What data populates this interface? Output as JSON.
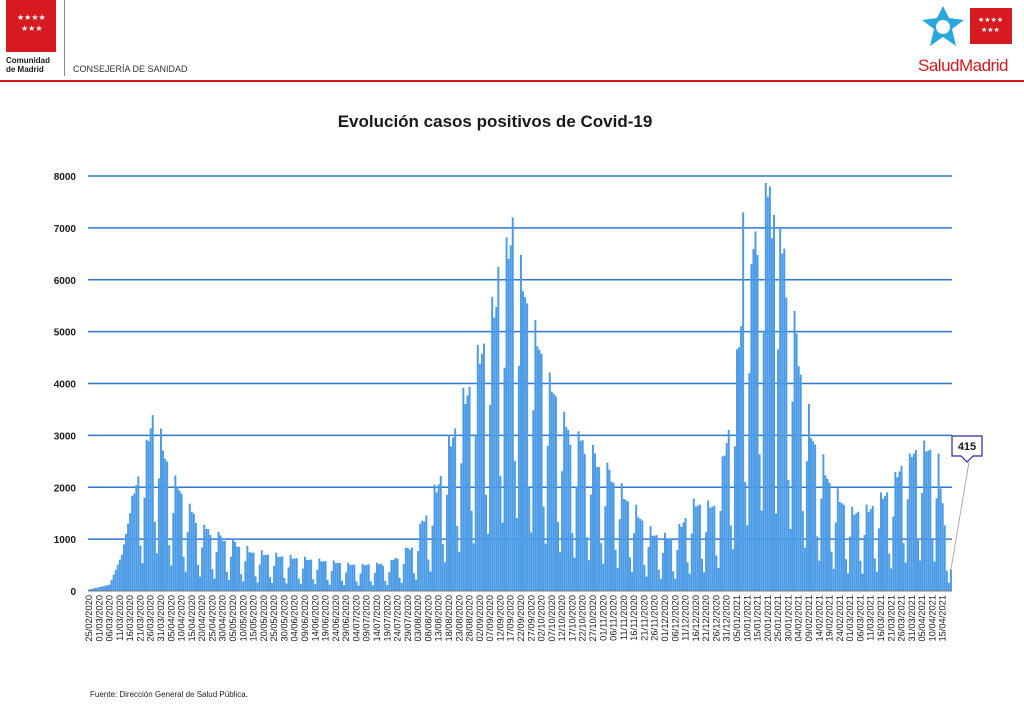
{
  "header": {
    "left_logo_line1": "Comunidad",
    "left_logo_line2": "de Madrid",
    "department": "CONSEJERÍA DE SANIDAD",
    "right_logo_text": "SaludMadrid",
    "brand_red": "#d71920",
    "brand_blue": "#2aa8de"
  },
  "chart_data": {
    "type": "bar",
    "title": "Evolución casos positivos de Covid-19",
    "xlabel": "",
    "ylabel": "",
    "ylim": [
      0,
      8000
    ],
    "yticks": [
      0,
      1000,
      2000,
      3000,
      4000,
      5000,
      6000,
      7000,
      8000
    ],
    "grid": true,
    "bar_color": "#4a9ae6",
    "grid_color": "#2e78d2",
    "x_start_date": "2020-02-25",
    "x_end_date": "2021-04-19",
    "x_tick_labels": [
      "25/02/2020",
      "01/03/2020",
      "06/03/2020",
      "11/03/2020",
      "16/03/2020",
      "21/03/2020",
      "26/03/2020",
      "31/03/2020",
      "05/04/2020",
      "10/04/2020",
      "15/04/2020",
      "20/04/2020",
      "25/04/2020",
      "30/04/2020",
      "05/05/2020",
      "10/05/2020",
      "15/05/2020",
      "20/05/2020",
      "25/05/2020",
      "30/05/2020",
      "04/06/2020",
      "09/06/2020",
      "14/06/2020",
      "19/06/2020",
      "24/06/2020",
      "29/06/2020",
      "04/07/2020",
      "09/07/2020",
      "14/07/2020",
      "19/07/2020",
      "24/07/2020",
      "29/07/2020",
      "03/08/2020",
      "08/08/2020",
      "13/08/2020",
      "18/08/2020",
      "23/08/2020",
      "28/08/2020",
      "02/09/2020",
      "07/09/2020",
      "12/09/2020",
      "17/09/2020",
      "22/09/2020",
      "27/09/2020",
      "02/10/2020",
      "07/10/2020",
      "12/10/2020",
      "17/10/2020",
      "22/10/2020",
      "27/10/2020",
      "01/11/2020",
      "06/11/2020",
      "11/11/2020",
      "16/11/2020",
      "21/11/2020",
      "26/11/2020",
      "01/12/2020",
      "06/12/2020",
      "11/12/2020",
      "16/12/2020",
      "21/12/2020",
      "26/12/2020",
      "31/12/2020",
      "05/01/2021",
      "10/01/2021",
      "15/01/2021",
      "20/01/2021",
      "25/01/2021",
      "30/01/2021",
      "04/02/2021",
      "09/02/2021",
      "14/02/2021",
      "19/02/2021",
      "24/02/2021",
      "01/03/2021",
      "06/03/2021",
      "11/03/2021",
      "16/03/2021",
      "21/03/2021",
      "26/03/2021",
      "31/03/2021",
      "05/04/2021",
      "10/04/2021",
      "15/04/2021"
    ],
    "series_envelope_dates": [
      "2020-02-25",
      "2020-03-06",
      "2020-03-12",
      "2020-03-18",
      "2020-03-24",
      "2020-03-28",
      "2020-04-02",
      "2020-04-10",
      "2020-04-20",
      "2020-05-01",
      "2020-05-15",
      "2020-06-01",
      "2020-06-20",
      "2020-07-05",
      "2020-07-20",
      "2020-08-01",
      "2020-08-12",
      "2020-08-22",
      "2020-09-02",
      "2020-09-10",
      "2020-09-18",
      "2020-09-25",
      "2020-10-05",
      "2020-10-15",
      "2020-10-25",
      "2020-11-05",
      "2020-11-15",
      "2020-11-25",
      "2020-12-05",
      "2020-12-15",
      "2020-12-25",
      "2021-01-01",
      "2021-01-08",
      "2021-01-14",
      "2021-01-20",
      "2021-01-26",
      "2021-02-02",
      "2021-02-10",
      "2021-02-20",
      "2021-03-01",
      "2021-03-10",
      "2021-03-20",
      "2021-03-28",
      "2021-04-05",
      "2021-04-12",
      "2021-04-19"
    ],
    "series_envelope_values": [
      30,
      120,
      700,
      1900,
      2700,
      3500,
      2500,
      1800,
      1200,
      1000,
      750,
      650,
      560,
      480,
      520,
      900,
      2000,
      3300,
      4500,
      5500,
      6800,
      5400,
      4000,
      3000,
      2700,
      2200,
      1650,
      1100,
      1000,
      1650,
      1600,
      3000,
      5300,
      6700,
      7400,
      6500,
      5000,
      3100,
      2000,
      1500,
      1550,
      1900,
      2500,
      2700,
      2550,
      415
    ],
    "weekly_spikes": [
      [
        "2020-09-18",
        7200
      ],
      [
        "2020-09-11",
        6250
      ],
      [
        "2021-01-21",
        7800
      ],
      [
        "2021-01-08",
        7300
      ],
      [
        "2021-01-12",
        6300
      ],
      [
        "2021-01-23",
        7250
      ],
      [
        "2021-01-28",
        6600
      ],
      [
        "2021-03-30",
        2650
      ],
      [
        "2021-04-06",
        2900
      ],
      [
        "2021-04-13",
        2650
      ]
    ],
    "annotations": [
      {
        "text": "415",
        "date": "2021-04-19",
        "value": 415
      }
    ]
  },
  "footer": {
    "source": "Fuente: Dirección General de Salud Pública."
  }
}
